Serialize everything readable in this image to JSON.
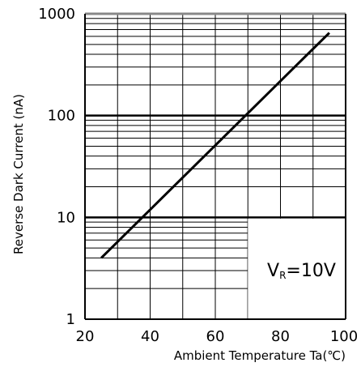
{
  "chart_data": {
    "type": "line",
    "xlabel": "Ambient Temperature   Ta(℃)",
    "ylabel": "Reverse Dark Current (nA)",
    "xlim": [
      20,
      100
    ],
    "ylim": [
      1,
      1000
    ],
    "yscale": "log",
    "x_ticks": [
      "20",
      "40",
      "60",
      "80",
      "100"
    ],
    "y_ticks": [
      "1",
      "10",
      "100",
      "1000"
    ],
    "grid": true,
    "annotation": {
      "main": "V",
      "sub": "R",
      "value": "=10V"
    },
    "series": [
      {
        "x": [
          25,
          95
        ],
        "y": [
          4,
          650
        ]
      }
    ]
  }
}
